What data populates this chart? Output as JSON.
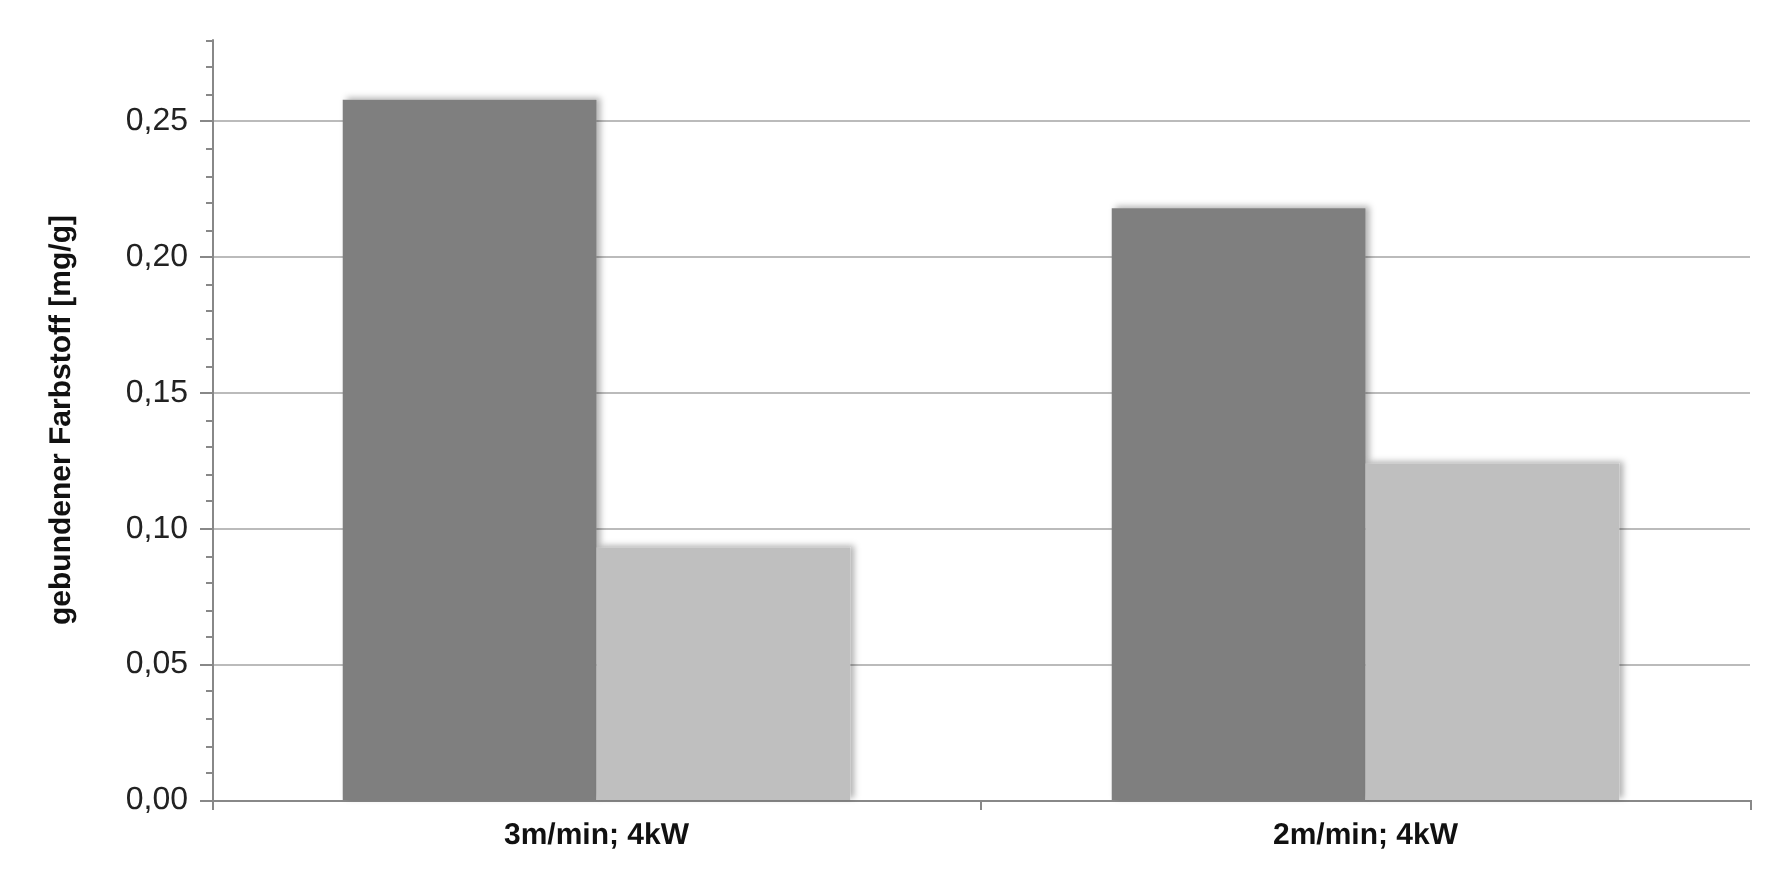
{
  "chart_data": {
    "type": "bar",
    "ylabel": "gebundener Farbstoff [mg/g]",
    "categories": [
      "3m/min; 4kW",
      "2m/min; 4kW"
    ],
    "series": [
      {
        "color": "#7f7f7f",
        "values": [
          0.258,
          0.218
        ]
      },
      {
        "color": "#bfbfbf",
        "values": [
          0.093,
          0.124
        ]
      }
    ],
    "ylim": [
      0,
      0.28
    ],
    "yticks": [
      {
        "value": 0,
        "label": "0,00"
      },
      {
        "value": 0.05,
        "label": "0,05"
      },
      {
        "value": 0.1,
        "label": "0,10"
      },
      {
        "value": 0.15,
        "label": "0,15"
      },
      {
        "value": 0.2,
        "label": "0,20"
      },
      {
        "value": 0.25,
        "label": "0,25"
      }
    ],
    "grid": "y"
  }
}
